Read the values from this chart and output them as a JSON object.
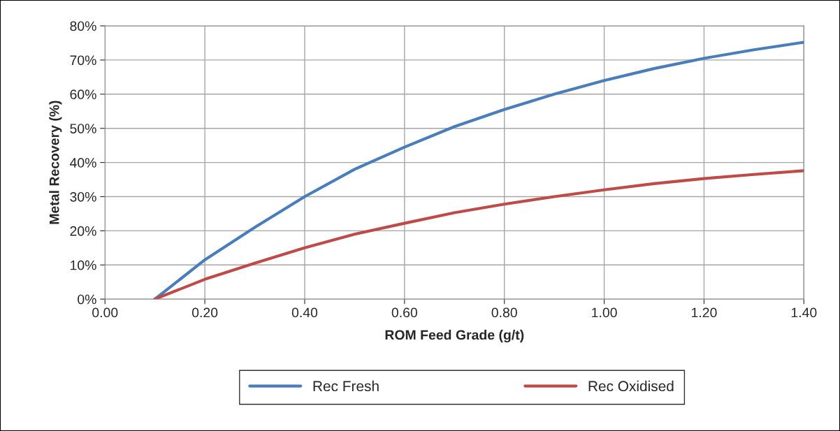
{
  "chart_data": {
    "type": "line",
    "xlabel": "ROM Feed Grade (g/t)",
    "ylabel": "Metal Recovery (%)",
    "x": [
      0.1,
      0.2,
      0.3,
      0.4,
      0.5,
      0.6,
      0.7,
      0.8,
      0.9,
      1.0,
      1.1,
      1.2,
      1.3,
      1.4
    ],
    "series": [
      {
        "name": "Rec Fresh",
        "color": "#4a7ebb",
        "values": [
          0,
          11.5,
          21,
          30,
          38,
          44.5,
          50.5,
          55.5,
          60,
          64,
          67.5,
          70.5,
          73,
          75.2
        ]
      },
      {
        "name": "Rec Oxidised",
        "color": "#be4b48",
        "values": [
          0,
          5.8,
          10.5,
          15,
          19,
          22.2,
          25.3,
          27.8,
          30,
          32,
          33.8,
          35.3,
          36.5,
          37.6
        ]
      }
    ],
    "xlim": [
      0,
      1.4
    ],
    "ylim": [
      0,
      80
    ],
    "xticks": [
      {
        "value": 0,
        "label": "0.00"
      },
      {
        "value": 0.2,
        "label": "0.20"
      },
      {
        "value": 0.4,
        "label": "0.40"
      },
      {
        "value": 0.6,
        "label": "0.60"
      },
      {
        "value": 0.8,
        "label": "0.80"
      },
      {
        "value": 1.0,
        "label": "1.00"
      },
      {
        "value": 1.2,
        "label": "1.20"
      },
      {
        "value": 1.4,
        "label": "1.40"
      }
    ],
    "yticks": [
      {
        "value": 0,
        "label": "0%"
      },
      {
        "value": 10,
        "label": "10%"
      },
      {
        "value": 20,
        "label": "20%"
      },
      {
        "value": 30,
        "label": "30%"
      },
      {
        "value": 40,
        "label": "40%"
      },
      {
        "value": 50,
        "label": "50%"
      },
      {
        "value": 60,
        "label": "60%"
      },
      {
        "value": 70,
        "label": "70%"
      },
      {
        "value": 80,
        "label": "80%"
      }
    ],
    "grid": true,
    "legend": "bottom",
    "marker": "none",
    "line_style": "solid"
  }
}
